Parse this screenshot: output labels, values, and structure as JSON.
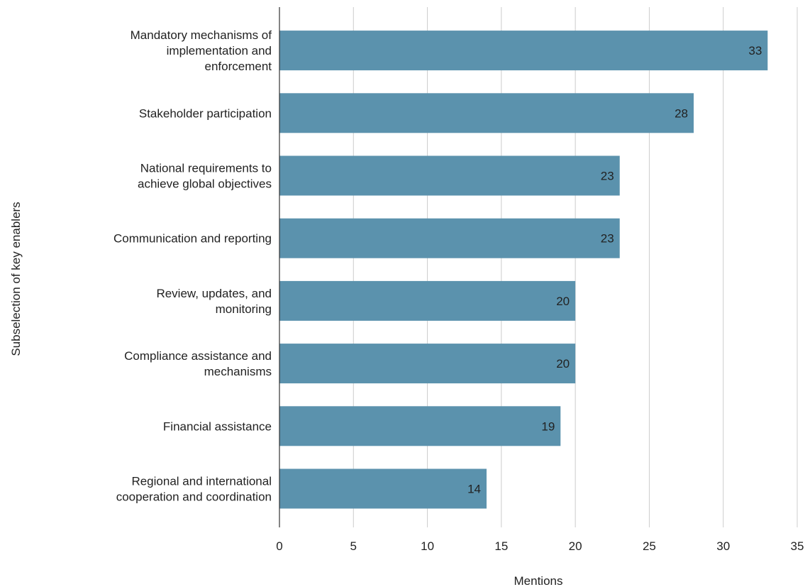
{
  "chart_data": {
    "type": "bar",
    "orientation": "horizontal",
    "title": "",
    "xlabel": "Mentions",
    "ylabel": "Subselection of key enablers",
    "categories": [
      [
        "Mandatory mechanisms of",
        "implementation and",
        "enforcement"
      ],
      [
        "Stakeholder participation"
      ],
      [
        "National requirements to",
        "achieve global objectives"
      ],
      [
        "Communication and reporting"
      ],
      [
        "Review, updates, and",
        "monitoring"
      ],
      [
        "Compliance assistance and",
        "mechanisms"
      ],
      [
        "Financial assistance"
      ],
      [
        "Regional and international",
        "cooperation and coordination"
      ]
    ],
    "values": [
      33,
      28,
      23,
      23,
      20,
      20,
      19,
      14
    ],
    "xlim": [
      0,
      35
    ],
    "xticks": [
      0,
      5,
      10,
      15,
      20,
      25,
      30,
      35
    ],
    "bar_color": "#5b92ad",
    "data_labels": true,
    "grid": "vertical",
    "legend": "none"
  }
}
